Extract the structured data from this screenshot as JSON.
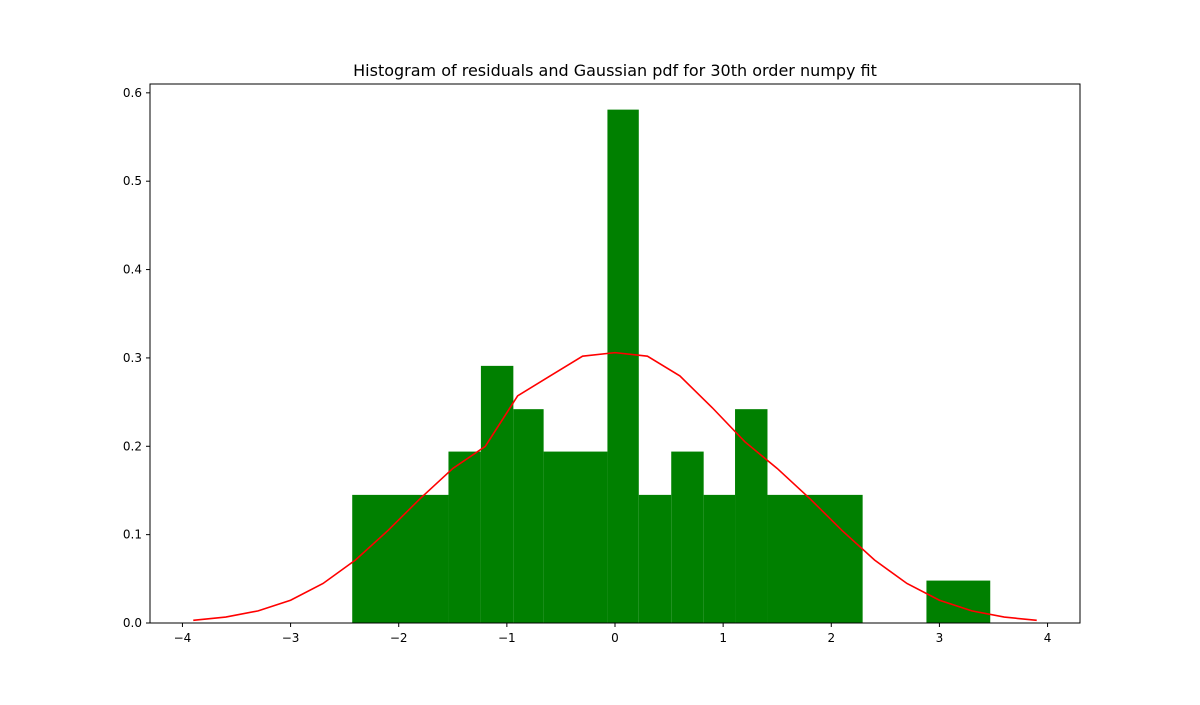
{
  "chart_data": {
    "type": "bar",
    "title": "Histogram of residuals and Gaussian pdf for 30th order numpy fit",
    "xlabel": "",
    "ylabel": "",
    "xlim": [
      -4.3,
      4.3
    ],
    "ylim": [
      0,
      0.61
    ],
    "xticks": [
      -4,
      -3,
      -2,
      -1,
      0,
      1,
      2,
      3,
      4
    ],
    "xtick_labels": [
      "−4",
      "−3",
      "−2",
      "−1",
      "0",
      "1",
      "2",
      "3",
      "4"
    ],
    "yticks": [
      0.0,
      0.1,
      0.2,
      0.3,
      0.4,
      0.5,
      0.6
    ],
    "ytick_labels": [
      "0.0",
      "0.1",
      "0.2",
      "0.3",
      "0.4",
      "0.5",
      "0.6"
    ],
    "grid": false,
    "legend": "none",
    "series": [
      {
        "type": "histogram",
        "color": "#008000",
        "bins": [
          {
            "x0": -2.43,
            "x1": -1.54,
            "value": 0.145
          },
          {
            "x0": -1.54,
            "x1": -1.24,
            "value": 0.194
          },
          {
            "x0": -1.24,
            "x1": -0.94,
            "value": 0.291
          },
          {
            "x0": -0.94,
            "x1": -0.66,
            "value": 0.242
          },
          {
            "x0": -0.66,
            "x1": -0.07,
            "value": 0.194
          },
          {
            "x0": -0.07,
            "x1": 0.22,
            "value": 0.581
          },
          {
            "x0": 0.22,
            "x1": 0.52,
            "value": 0.145
          },
          {
            "x0": 0.52,
            "x1": 0.82,
            "value": 0.194
          },
          {
            "x0": 0.82,
            "x1": 1.11,
            "value": 0.145
          },
          {
            "x0": 1.11,
            "x1": 1.41,
            "value": 0.242
          },
          {
            "x0": 1.41,
            "x1": 2.29,
            "value": 0.145
          },
          {
            "x0": 2.29,
            "x1": 2.88,
            "value": 0.0
          },
          {
            "x0": 2.88,
            "x1": 3.47,
            "value": 0.048
          }
        ]
      },
      {
        "type": "line",
        "color": "#ff0000",
        "x": [
          -3.9,
          -3.6,
          -3.3,
          -3.0,
          -2.7,
          -2.4,
          -2.1,
          -1.8,
          -1.5,
          -1.2,
          -0.9,
          -0.6,
          -0.3,
          0.0,
          0.3,
          0.6,
          0.9,
          1.2,
          1.5,
          1.8,
          2.1,
          2.4,
          2.7,
          3.0,
          3.3,
          3.6,
          3.9
        ],
        "y": [
          0.003,
          0.0067,
          0.0137,
          0.0258,
          0.0447,
          0.0713,
          0.1046,
          0.141,
          0.1749,
          0.1998,
          0.2571,
          0.2796,
          0.302,
          0.306,
          0.302,
          0.2796,
          0.2436,
          0.2052,
          0.1749,
          0.141,
          0.1046,
          0.0713,
          0.0447,
          0.0258,
          0.0137,
          0.0067,
          0.003
        ]
      }
    ]
  }
}
